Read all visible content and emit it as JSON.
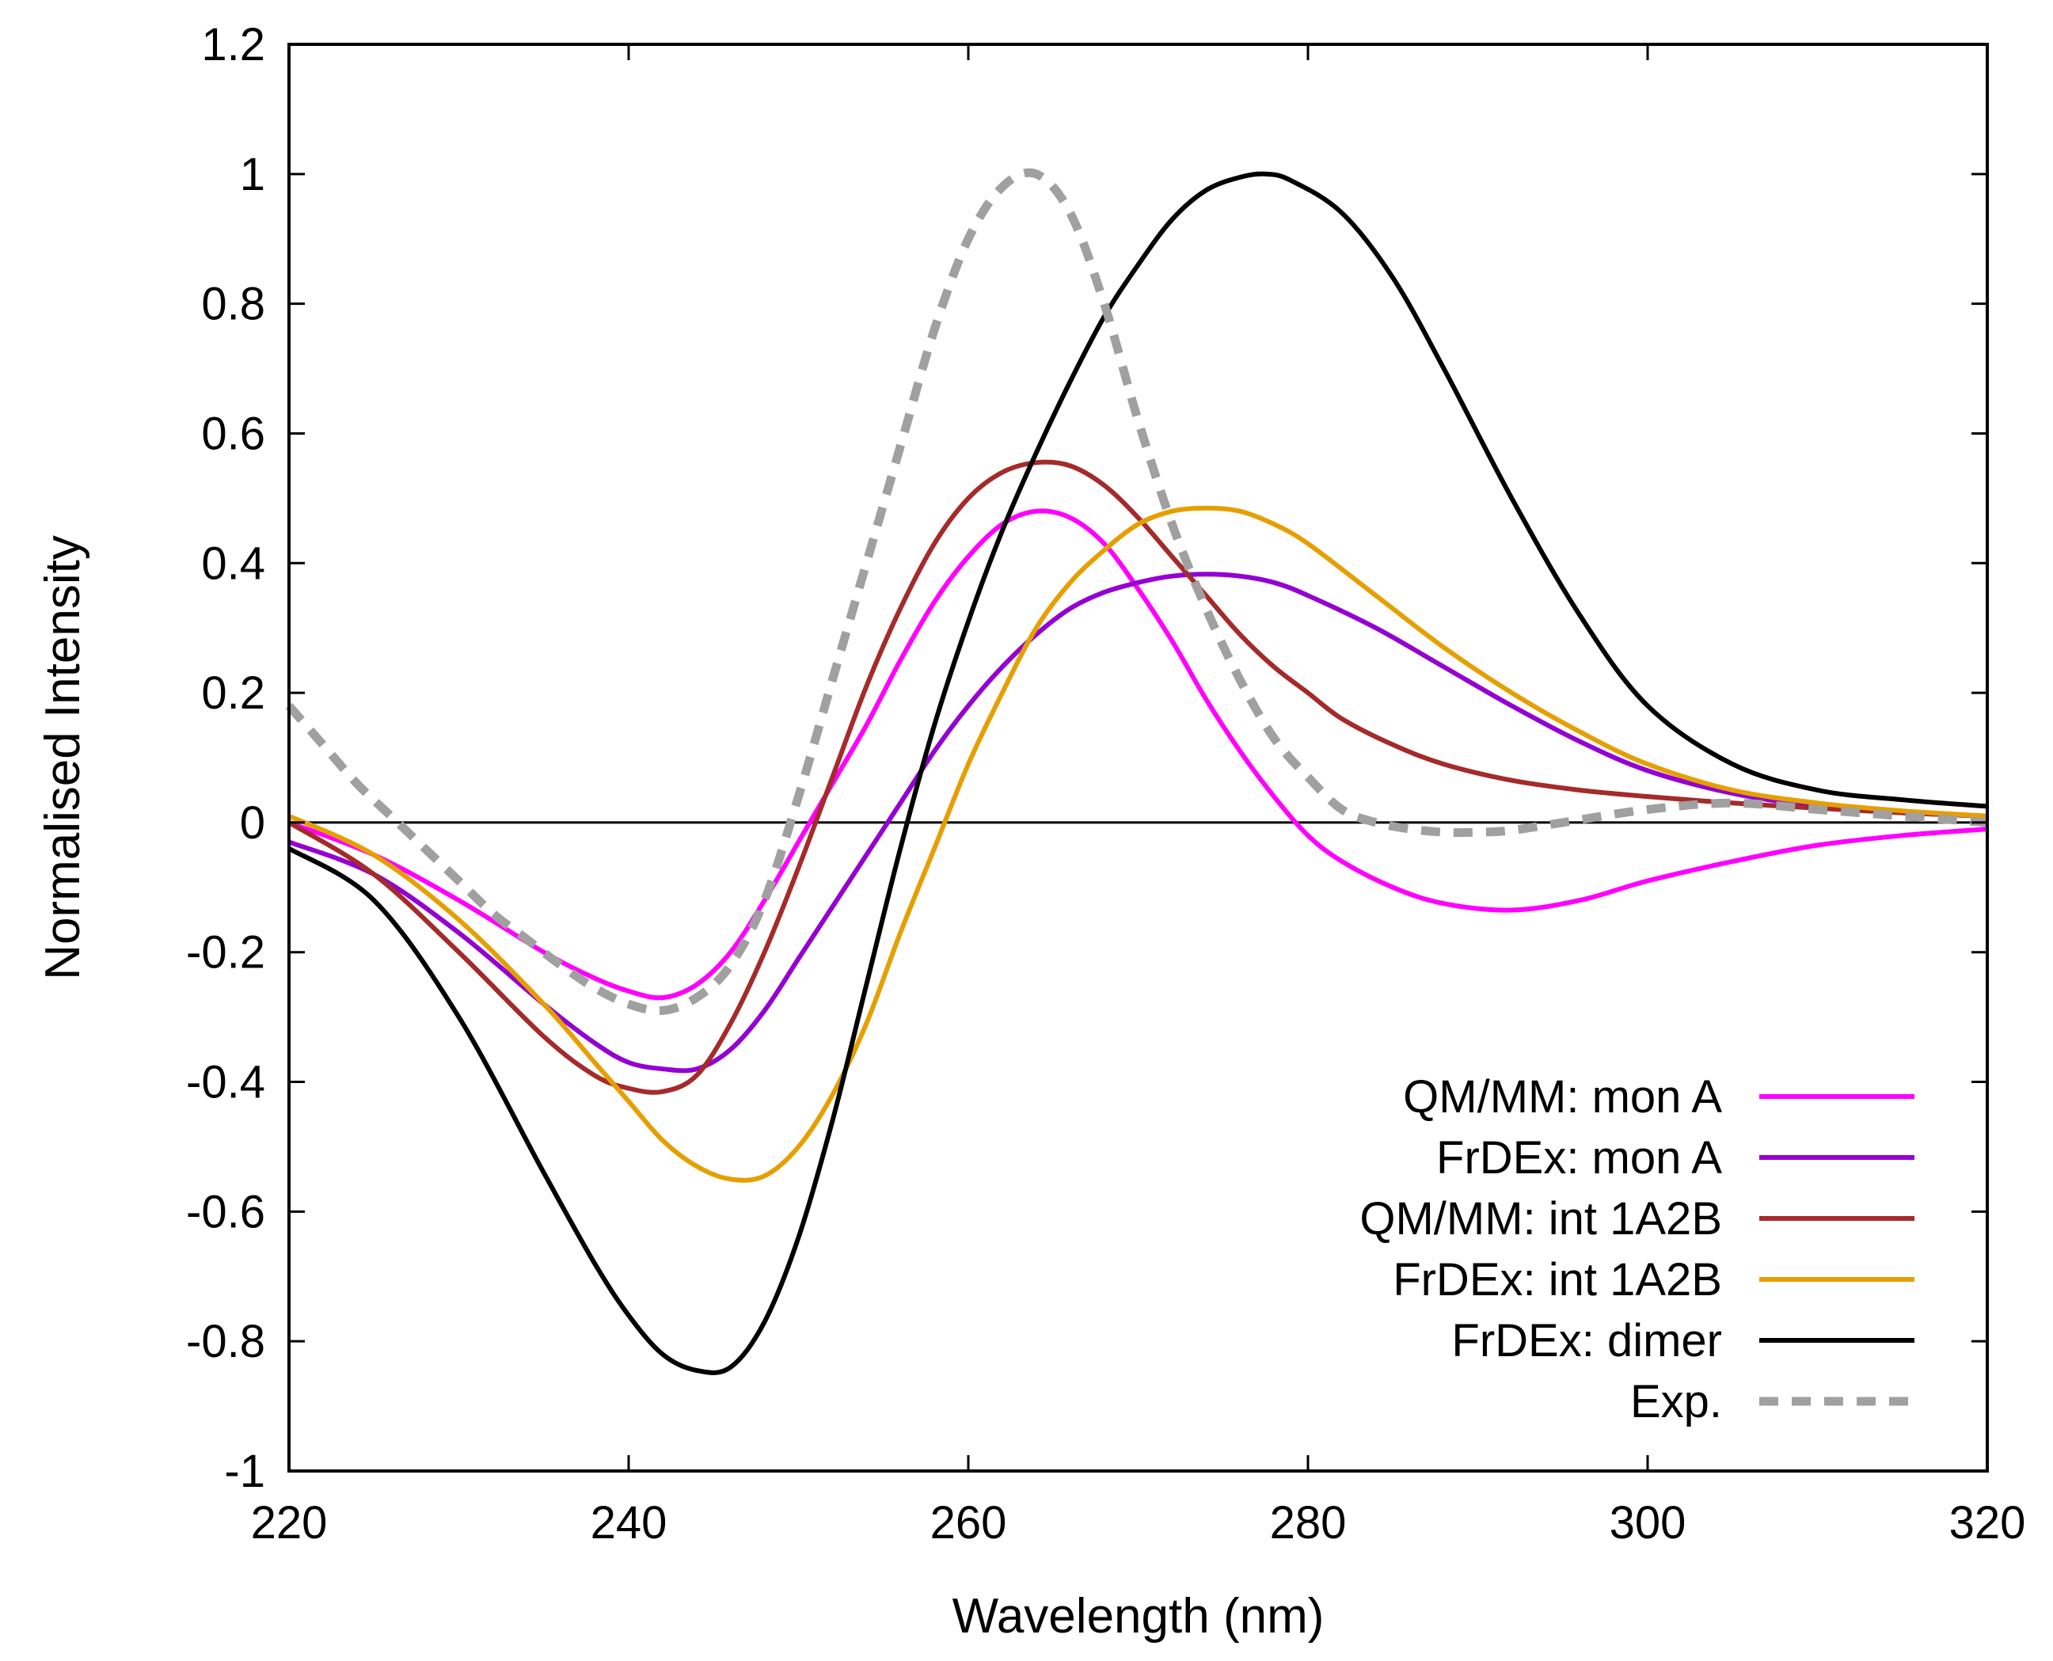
{
  "chart_data": {
    "type": "line",
    "title": "",
    "xlabel": "Wavelength (nm)",
    "ylabel": "Normalised Intensity",
    "xlim": [
      220,
      320
    ],
    "ylim": [
      -1,
      1.2
    ],
    "xticks": [
      220,
      240,
      260,
      280,
      300,
      320
    ],
    "xtick_labels": [
      "220",
      "240",
      "260",
      "280",
      "300",
      "320"
    ],
    "yticks": [
      -1,
      -0.8,
      -0.6,
      -0.4,
      -0.2,
      0,
      0.2,
      0.4,
      0.6,
      0.8,
      1,
      1.2
    ],
    "ytick_labels": [
      "-1",
      "-0.8",
      "-0.6",
      "-0.4",
      "-0.2",
      "0",
      "0.2",
      "0.4",
      "0.6",
      "0.8",
      "1",
      "1.2"
    ],
    "grid": false,
    "zero_line": true,
    "legend_position": "bottom-right",
    "series": [
      {
        "name": "QM/MM: mon A",
        "color": "#ff00ff",
        "dashed": false,
        "x": [
          220,
          225,
          230,
          235,
          238,
          240,
          242,
          244,
          246,
          248,
          250,
          252,
          254,
          256,
          258,
          260,
          262,
          264,
          266,
          268,
          270,
          272,
          274,
          276,
          278,
          280,
          282,
          285,
          288,
          292,
          296,
          300,
          305,
          310,
          315,
          320
        ],
        "y": [
          0.0,
          -0.05,
          -0.12,
          -0.2,
          -0.24,
          -0.26,
          -0.27,
          -0.25,
          -0.2,
          -0.12,
          -0.03,
          0.06,
          0.15,
          0.25,
          0.34,
          0.41,
          0.46,
          0.48,
          0.47,
          0.43,
          0.36,
          0.28,
          0.19,
          0.11,
          0.04,
          -0.02,
          -0.06,
          -0.1,
          -0.125,
          -0.135,
          -0.12,
          -0.09,
          -0.06,
          -0.035,
          -0.02,
          -0.01
        ]
      },
      {
        "name": "FrDEx: mon A",
        "color": "#9400d3",
        "dashed": false,
        "x": [
          220,
          225,
          230,
          235,
          238,
          240,
          242,
          244,
          246,
          248,
          250,
          252,
          254,
          256,
          258,
          260,
          262,
          264,
          266,
          268,
          270,
          272,
          274,
          276,
          278,
          280,
          284,
          288,
          292,
          296,
          300,
          305,
          310,
          315,
          320
        ],
        "y": [
          -0.03,
          -0.08,
          -0.17,
          -0.28,
          -0.34,
          -0.37,
          -0.38,
          -0.38,
          -0.35,
          -0.29,
          -0.21,
          -0.13,
          -0.05,
          0.03,
          0.11,
          0.18,
          0.24,
          0.29,
          0.33,
          0.355,
          0.37,
          0.38,
          0.383,
          0.38,
          0.37,
          0.35,
          0.3,
          0.24,
          0.18,
          0.125,
          0.08,
          0.045,
          0.025,
          0.015,
          0.01
        ]
      },
      {
        "name": "QM/MM: int 1A2B",
        "color": "#a52a2a",
        "dashed": false,
        "x": [
          220,
          225,
          230,
          235,
          238,
          240,
          242,
          244,
          246,
          248,
          250,
          252,
          254,
          256,
          258,
          260,
          262,
          264,
          266,
          268,
          270,
          272,
          274,
          276,
          278,
          280,
          282,
          285,
          288,
          292,
          296,
          300,
          305,
          310,
          315,
          320
        ],
        "y": [
          0.0,
          -0.08,
          -0.2,
          -0.33,
          -0.39,
          -0.41,
          -0.415,
          -0.39,
          -0.31,
          -0.2,
          -0.07,
          0.07,
          0.21,
          0.33,
          0.43,
          0.5,
          0.54,
          0.555,
          0.55,
          0.52,
          0.47,
          0.41,
          0.35,
          0.29,
          0.24,
          0.2,
          0.16,
          0.12,
          0.09,
          0.065,
          0.05,
          0.04,
          0.03,
          0.022,
          0.015,
          0.01
        ]
      },
      {
        "name": "FrDEx: int 1A2B",
        "color": "#e69f00",
        "dashed": false,
        "x": [
          220,
          225,
          230,
          235,
          238,
          240,
          242,
          244,
          246,
          248,
          250,
          252,
          254,
          256,
          258,
          260,
          262,
          264,
          266,
          268,
          270,
          272,
          274,
          276,
          278,
          280,
          284,
          288,
          292,
          296,
          300,
          305,
          310,
          315,
          320
        ],
        "y": [
          0.01,
          -0.05,
          -0.15,
          -0.28,
          -0.37,
          -0.43,
          -0.49,
          -0.53,
          -0.55,
          -0.545,
          -0.5,
          -0.42,
          -0.31,
          -0.17,
          -0.04,
          0.09,
          0.2,
          0.3,
          0.37,
          0.42,
          0.46,
          0.48,
          0.485,
          0.48,
          0.46,
          0.43,
          0.35,
          0.27,
          0.2,
          0.14,
          0.09,
          0.05,
          0.03,
          0.018,
          0.01
        ]
      },
      {
        "name": "FrDEx: dimer",
        "color": "#000000",
        "dashed": false,
        "x": [
          220,
          225,
          230,
          235,
          238,
          240,
          242,
          244,
          246,
          248,
          250,
          252,
          254,
          256,
          258,
          260,
          262,
          264,
          266,
          268,
          270,
          272,
          274,
          276,
          277.5,
          279,
          282,
          285,
          288,
          292,
          296,
          300,
          305,
          310,
          315,
          320
        ],
        "y": [
          -0.04,
          -0.12,
          -0.3,
          -0.54,
          -0.68,
          -0.76,
          -0.82,
          -0.845,
          -0.84,
          -0.77,
          -0.64,
          -0.46,
          -0.25,
          -0.04,
          0.15,
          0.31,
          0.45,
          0.57,
          0.68,
          0.78,
          0.86,
          0.93,
          0.975,
          0.995,
          1.0,
          0.99,
          0.94,
          0.84,
          0.7,
          0.5,
          0.32,
          0.18,
          0.09,
          0.05,
          0.035,
          0.025
        ]
      },
      {
        "name": "Exp.",
        "color": "#a0a0a0",
        "dashed": true,
        "x": [
          220,
          222,
          224,
          226,
          228,
          230,
          232,
          234,
          236,
          238,
          240,
          242,
          244,
          246,
          248,
          250,
          252,
          254,
          256,
          258,
          260,
          262,
          264,
          266,
          268,
          270,
          272,
          274,
          276,
          278,
          280,
          282,
          284,
          286,
          288,
          290,
          292,
          295,
          300,
          305,
          310,
          315,
          320
        ],
        "y": [
          0.18,
          0.12,
          0.06,
          0.01,
          -0.04,
          -0.09,
          -0.14,
          -0.18,
          -0.22,
          -0.255,
          -0.28,
          -0.29,
          -0.27,
          -0.22,
          -0.12,
          0.04,
          0.22,
          0.4,
          0.58,
          0.76,
          0.9,
          0.98,
          1.0,
          0.94,
          0.8,
          0.62,
          0.46,
          0.33,
          0.22,
          0.13,
          0.07,
          0.02,
          0.0,
          -0.01,
          -0.015,
          -0.015,
          -0.012,
          0.0,
          0.02,
          0.03,
          0.02,
          0.01,
          0.0
        ]
      }
    ]
  }
}
